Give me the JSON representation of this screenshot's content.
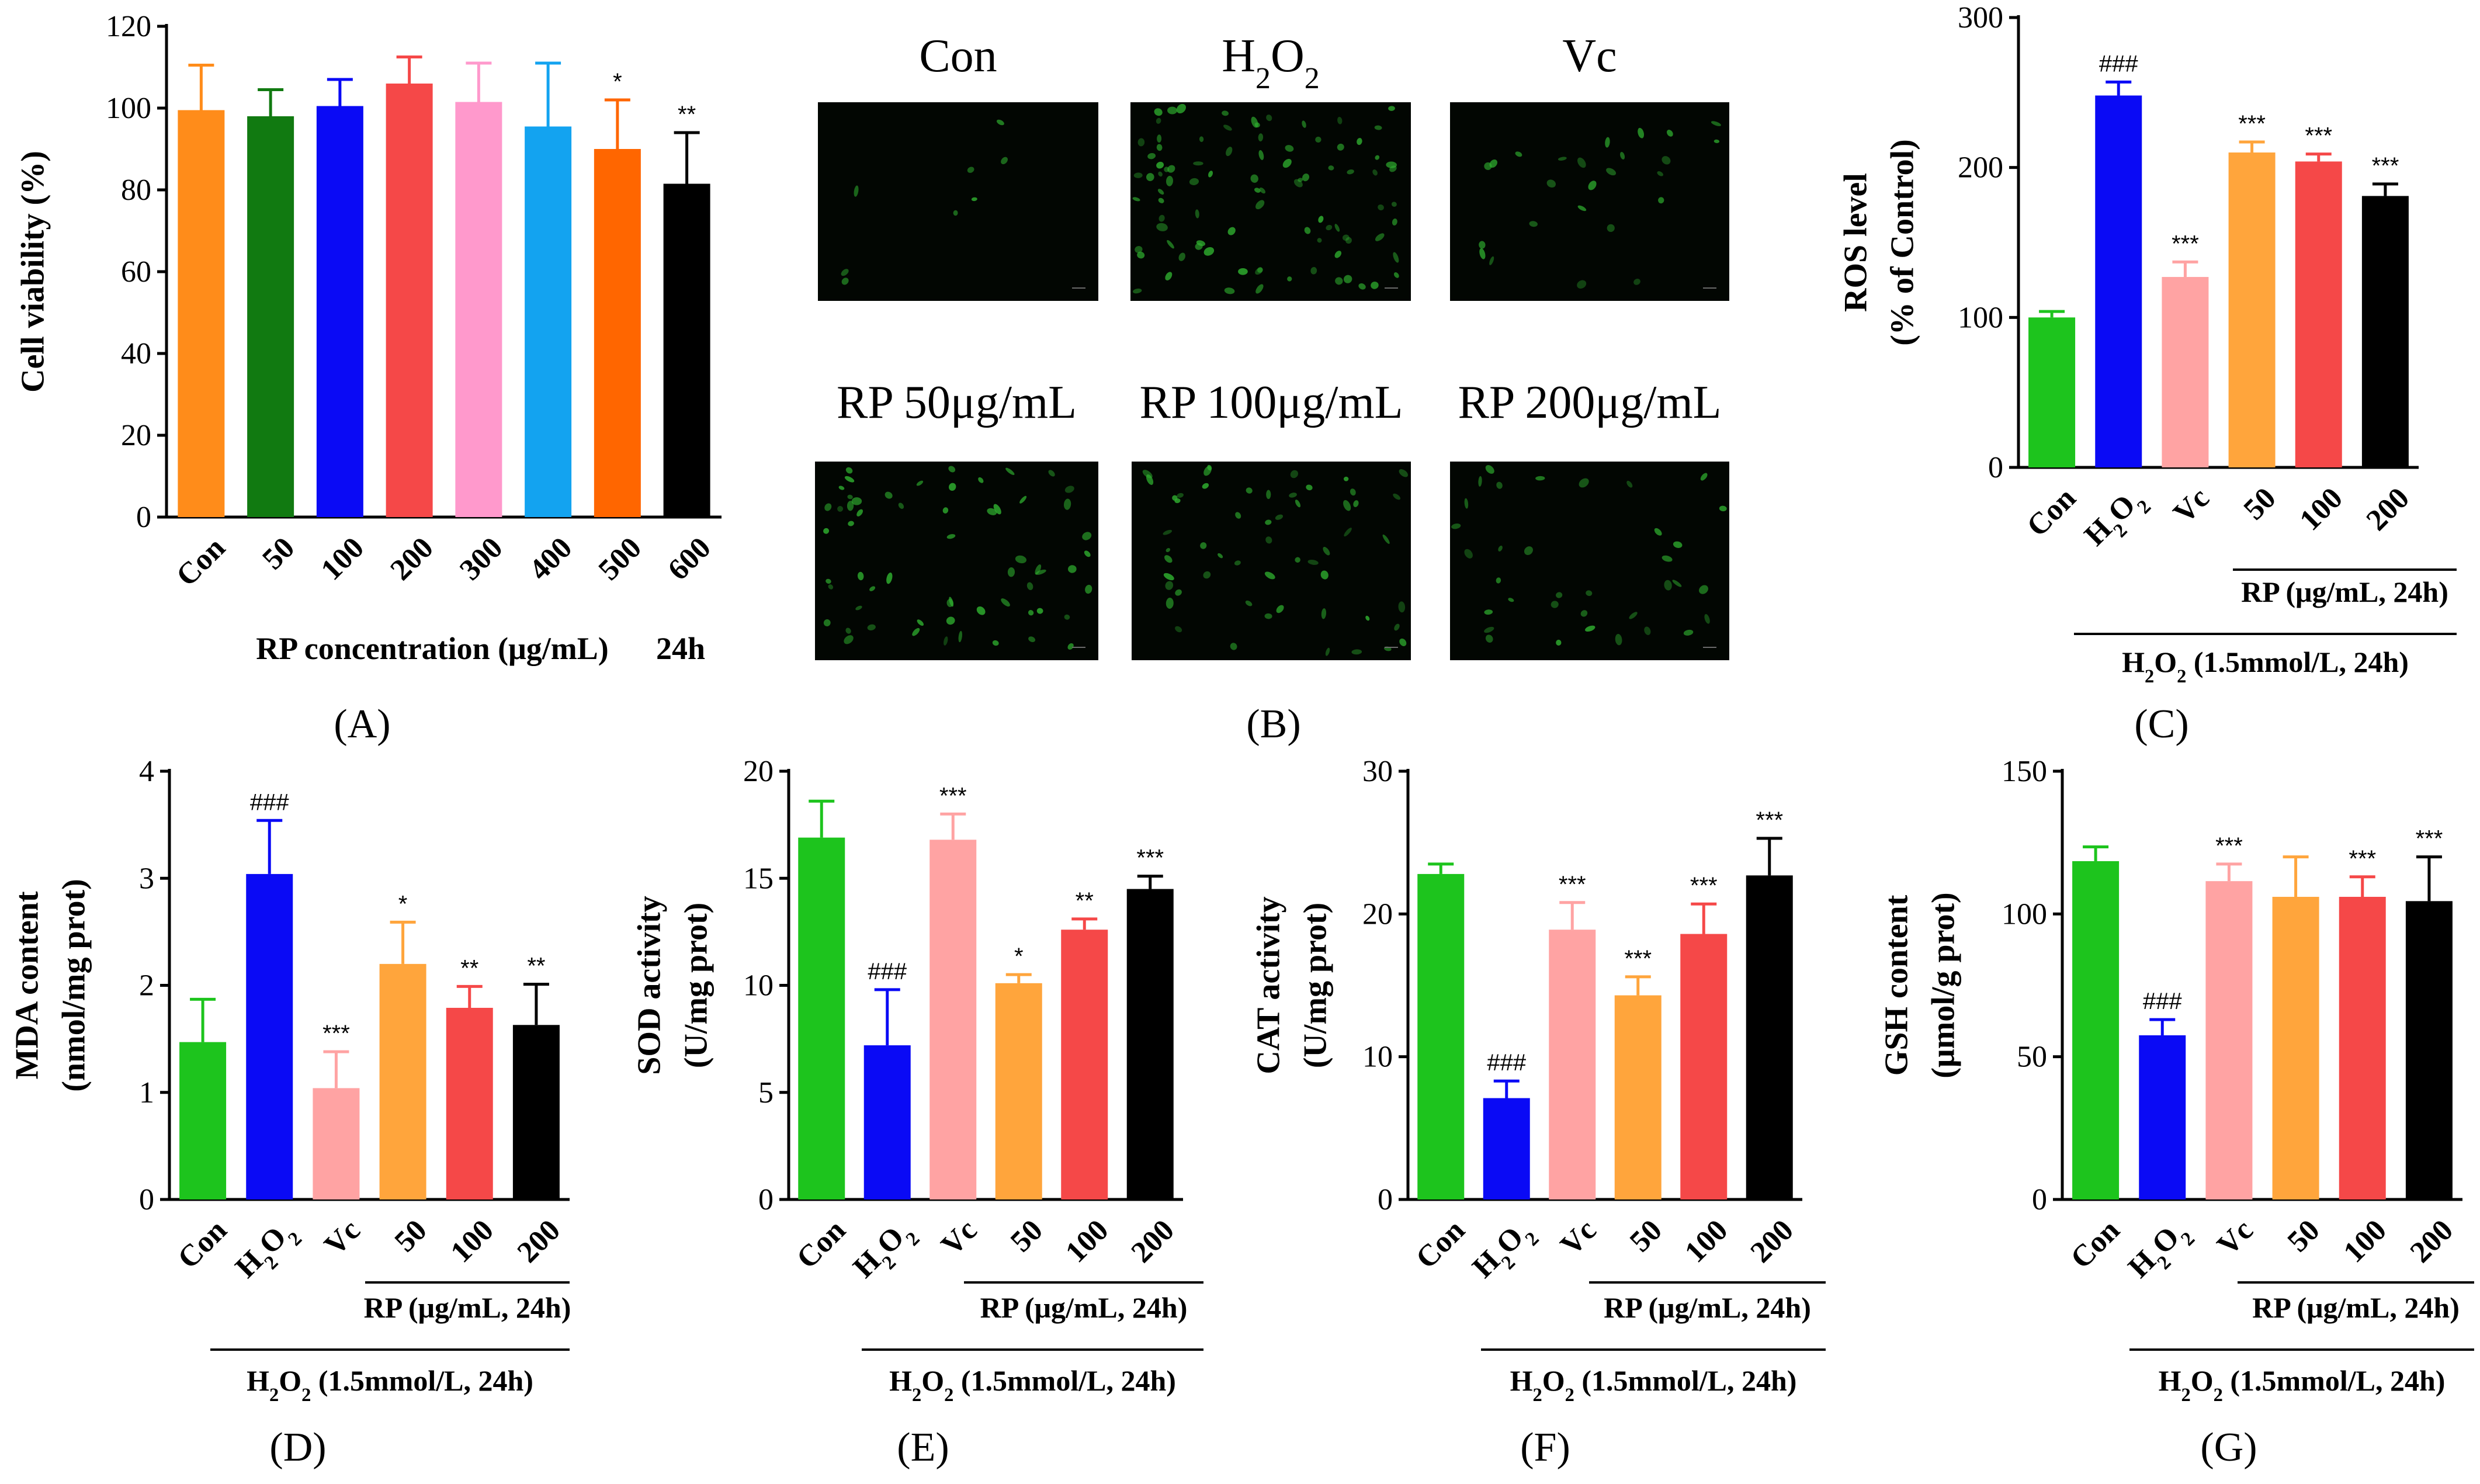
{
  "colors": {
    "orange": "#FF8C1A",
    "dkgreen": "#117A11",
    "blue": "#0A0AF5",
    "red": "#F54848",
    "pink": "#FF99CC",
    "sky": "#13A3F0",
    "orange2": "#FF6600",
    "black": "#000000",
    "green": "#1DC41D",
    "salmon": "#FFA3A3",
    "lightorange": "#FFA53C"
  },
  "chart_data": [
    {
      "id": "A",
      "type": "bar",
      "label": "(A)",
      "title": "",
      "ylabel": "Cell viability (%)",
      "xlabel": "RP concentration (μg/mL)",
      "xlabel_suffix": "24h",
      "categories": [
        "Con",
        "50",
        "100",
        "200",
        "300",
        "400",
        "500",
        "600"
      ],
      "values": [
        99.5,
        98,
        100.5,
        106,
        101.5,
        95.5,
        90,
        81.5
      ],
      "errors": [
        11,
        6.5,
        6.5,
        6.5,
        9.5,
        15.5,
        12,
        12.5
      ],
      "significance": [
        "",
        "",
        "",
        "",
        "",
        "",
        "*",
        "**"
      ],
      "bar_colors": [
        "#FF8C1A",
        "#117A11",
        "#0A0AF5",
        "#F54848",
        "#FF99CC",
        "#13A3F0",
        "#FF6600",
        "#000000"
      ],
      "ylim": [
        0,
        120
      ],
      "yticks": [
        "0",
        "20",
        "40",
        "60",
        "80",
        "100",
        "120"
      ]
    },
    {
      "id": "C",
      "type": "bar",
      "label": "(C)",
      "ylabel": "ROS level",
      "ylabel2": "(% of Control)",
      "categories": [
        "Con",
        "H2O2",
        "Vc",
        "50",
        "100",
        "200"
      ],
      "values": [
        100,
        248,
        127,
        210,
        204,
        181
      ],
      "errors": [
        4,
        9,
        10,
        7,
        5,
        8
      ],
      "significance": [
        "",
        "###",
        "***",
        "***",
        "***",
        "***"
      ],
      "bar_colors": [
        "#1DC41D",
        "#0A0AF5",
        "#FFA3A3",
        "#FFA53C",
        "#F54848",
        "#000000"
      ],
      "ylim": [
        0,
        300
      ],
      "yticks": [
        "0",
        "100",
        "200",
        "300"
      ],
      "group1_label": "RP (μg/mL, 24h)",
      "group2_label": "H2O2 (1.5mmol/L, 24h)"
    },
    {
      "id": "D",
      "type": "bar",
      "label": "(D)",
      "ylabel": "MDA content",
      "ylabel2": "(nmol/mg prot)",
      "categories": [
        "Con",
        "H2O2",
        "Vc",
        "50",
        "100",
        "200"
      ],
      "values": [
        1.47,
        3.04,
        1.04,
        2.2,
        1.79,
        1.63
      ],
      "errors": [
        0.4,
        0.5,
        0.34,
        0.39,
        0.2,
        0.38
      ],
      "significance": [
        "",
        "###",
        "***",
        "*",
        "**",
        "**"
      ],
      "bar_colors": [
        "#1DC41D",
        "#0A0AF5",
        "#FFA3A3",
        "#FFA53C",
        "#F54848",
        "#000000"
      ],
      "ylim": [
        0,
        4
      ],
      "yticks": [
        "0",
        "1",
        "2",
        "3",
        "4"
      ],
      "group1_label": "RP (μg/mL, 24h)",
      "group2_label": "H2O2 (1.5mmol/L, 24h)"
    },
    {
      "id": "E",
      "type": "bar",
      "label": "(E)",
      "ylabel": "SOD activity",
      "ylabel2": "(U/mg prot)",
      "categories": [
        "Con",
        "H2O2",
        "Vc",
        "50",
        "100",
        "200"
      ],
      "values": [
        16.9,
        7.2,
        16.8,
        10.1,
        12.6,
        14.5
      ],
      "errors": [
        1.7,
        2.6,
        1.2,
        0.4,
        0.5,
        0.6
      ],
      "significance": [
        "",
        "###",
        "***",
        "*",
        "**",
        "***"
      ],
      "bar_colors": [
        "#1DC41D",
        "#0A0AF5",
        "#FFA3A3",
        "#FFA53C",
        "#F54848",
        "#000000"
      ],
      "ylim": [
        0,
        20
      ],
      "yticks": [
        "0",
        "5",
        "10",
        "15",
        "20"
      ],
      "group1_label": "RP (μg/mL, 24h)",
      "group2_label": "H2O2 (1.5mmol/L, 24h)"
    },
    {
      "id": "F",
      "type": "bar",
      "label": "(F)",
      "ylabel": "CAT activity",
      "ylabel2": "(U/mg prot)",
      "categories": [
        "Con",
        "H2O2",
        "Vc",
        "50",
        "100",
        "200"
      ],
      "values": [
        22.8,
        7.1,
        18.9,
        14.3,
        18.6,
        22.7
      ],
      "errors": [
        0.7,
        1.2,
        1.9,
        1.3,
        2.1,
        2.6
      ],
      "significance": [
        "",
        "###",
        "***",
        "***",
        "***",
        "***"
      ],
      "bar_colors": [
        "#1DC41D",
        "#0A0AF5",
        "#FFA3A3",
        "#FFA53C",
        "#F54848",
        "#000000"
      ],
      "ylim": [
        0,
        30
      ],
      "yticks": [
        "0",
        "10",
        "20",
        "30"
      ],
      "group1_label": "RP (μg/mL, 24h)",
      "group2_label": "H2O2 (1.5mmol/L, 24h)"
    },
    {
      "id": "G",
      "type": "bar",
      "label": "(G)",
      "ylabel": "GSH content",
      "ylabel2": "(μmol/g prot)",
      "categories": [
        "Con",
        "H2O2",
        "Vc",
        "50",
        "100",
        "200"
      ],
      "values": [
        118.5,
        57.5,
        111.5,
        106,
        106,
        104.5
      ],
      "errors": [
        5,
        5.5,
        6,
        14,
        7,
        15.5
      ],
      "significance": [
        "",
        "###",
        "***",
        "",
        "***",
        "***"
      ],
      "bar_colors": [
        "#1DC41D",
        "#0A0AF5",
        "#FFA3A3",
        "#FFA53C",
        "#F54848",
        "#000000"
      ],
      "ylim": [
        0,
        150
      ],
      "yticks": [
        "0",
        "50",
        "100",
        "150"
      ],
      "group1_label": "RP (μg/mL, 24h)",
      "group2_label": "H2O2 (1.5mmol/L, 24h)"
    }
  ],
  "panel_b": {
    "label": "(B)",
    "images": [
      {
        "title": "Con",
        "density": 8
      },
      {
        "title": "H2O2",
        "density": 90
      },
      {
        "title": "Vc",
        "density": 25
      },
      {
        "title": "RP 50μg/mL",
        "density": 60
      },
      {
        "title": "RP 100μg/mL",
        "density": 55
      },
      {
        "title": "RP 200μg/mL",
        "density": 35
      }
    ]
  }
}
